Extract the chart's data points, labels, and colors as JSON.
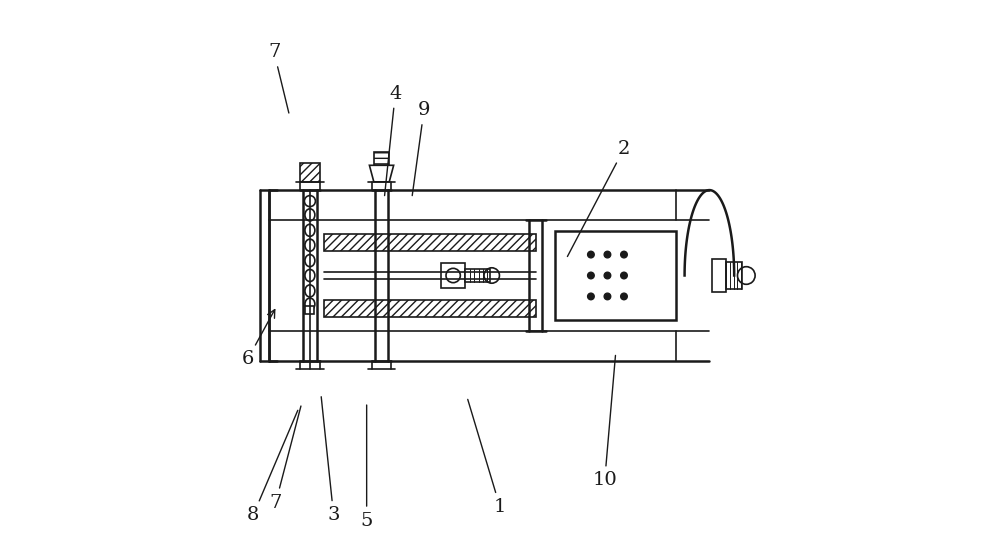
{
  "bg_color": "#ffffff",
  "line_color": "#1a1a1a",
  "label_color": "#1a1a1a",
  "figsize": [
    10.0,
    5.51
  ],
  "dpi": 100
}
